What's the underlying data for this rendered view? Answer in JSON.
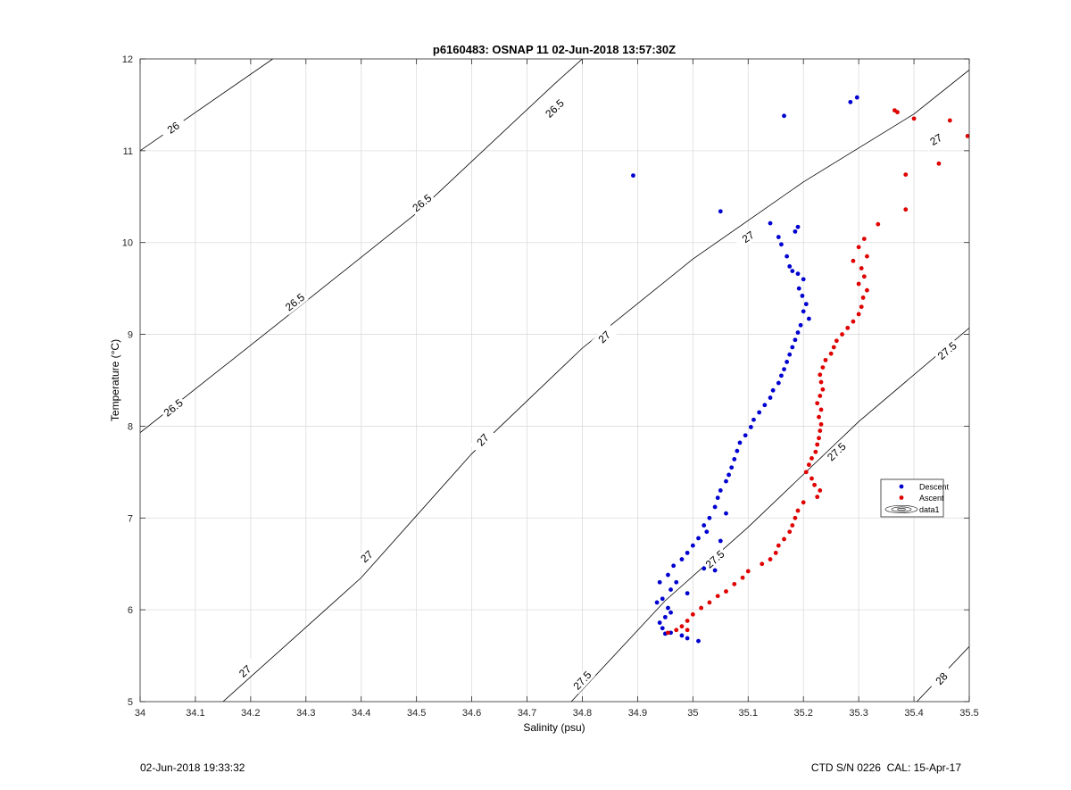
{
  "chart_data": {
    "type": "scatter",
    "title": "p6160483: OSNAP 11 02-Jun-2018 13:57:30Z",
    "xlabel": "Salinity (psu)",
    "ylabel": "Temperature (°C)",
    "xlim": [
      34,
      35.5
    ],
    "ylim": [
      5,
      12
    ],
    "xticks": [
      "34",
      "34.1",
      "34.2",
      "34.3",
      "34.4",
      "34.5",
      "34.6",
      "34.7",
      "34.8",
      "34.9",
      "35",
      "35.1",
      "35.2",
      "35.3",
      "35.4",
      "35.5"
    ],
    "yticks": [
      "5",
      "6",
      "7",
      "8",
      "9",
      "10",
      "11",
      "12"
    ],
    "grid": true,
    "legend_placement": "right",
    "legend": [
      "Descent",
      "Ascent",
      "data1"
    ],
    "series": [
      {
        "name": "Descent",
        "color": "#0000d0",
        "points": [
          [
            34.892,
            10.73
          ],
          [
            35.05,
            10.34
          ],
          [
            35.165,
            11.38
          ],
          [
            35.285,
            11.53
          ],
          [
            35.297,
            11.58
          ],
          [
            35.14,
            10.21
          ],
          [
            35.155,
            10.06
          ],
          [
            35.19,
            10.17
          ],
          [
            35.185,
            10.12
          ],
          [
            35.16,
            9.98
          ],
          [
            35.17,
            9.85
          ],
          [
            35.175,
            9.74
          ],
          [
            35.18,
            9.69
          ],
          [
            35.19,
            9.66
          ],
          [
            35.2,
            9.6
          ],
          [
            35.192,
            9.5
          ],
          [
            35.198,
            9.42
          ],
          [
            35.205,
            9.33
          ],
          [
            35.2,
            9.25
          ],
          [
            35.21,
            9.17
          ],
          [
            35.195,
            9.1
          ],
          [
            35.19,
            9.02
          ],
          [
            35.185,
            8.94
          ],
          [
            35.18,
            8.86
          ],
          [
            35.175,
            8.78
          ],
          [
            35.17,
            8.7
          ],
          [
            35.165,
            8.62
          ],
          [
            35.16,
            8.55
          ],
          [
            35.155,
            8.47
          ],
          [
            35.145,
            8.39
          ],
          [
            35.14,
            8.31
          ],
          [
            35.13,
            8.23
          ],
          [
            35.12,
            8.15
          ],
          [
            35.11,
            8.07
          ],
          [
            35.105,
            7.99
          ],
          [
            35.095,
            7.9
          ],
          [
            35.085,
            7.82
          ],
          [
            35.08,
            7.73
          ],
          [
            35.075,
            7.64
          ],
          [
            35.07,
            7.55
          ],
          [
            35.065,
            7.47
          ],
          [
            35.06,
            7.4
          ],
          [
            35.05,
            7.3
          ],
          [
            35.045,
            7.22
          ],
          [
            35.04,
            7.12
          ],
          [
            35.06,
            7.05
          ],
          [
            35.03,
            7.0
          ],
          [
            35.02,
            6.92
          ],
          [
            35.025,
            6.85
          ],
          [
            35.01,
            6.78
          ],
          [
            35.05,
            6.75
          ],
          [
            35.0,
            6.7
          ],
          [
            34.99,
            6.62
          ],
          [
            34.98,
            6.55
          ],
          [
            34.965,
            6.48
          ],
          [
            35.02,
            6.45
          ],
          [
            35.04,
            6.43
          ],
          [
            34.955,
            6.38
          ],
          [
            34.97,
            6.3
          ],
          [
            34.94,
            6.3
          ],
          [
            34.96,
            6.22
          ],
          [
            34.99,
            6.18
          ],
          [
            34.945,
            6.12
          ],
          [
            34.935,
            6.08
          ],
          [
            34.955,
            6.02
          ],
          [
            34.96,
            5.97
          ],
          [
            34.95,
            5.92
          ],
          [
            34.94,
            5.86
          ],
          [
            34.945,
            5.8
          ],
          [
            34.96,
            5.75
          ],
          [
            34.98,
            5.72
          ],
          [
            34.99,
            5.69
          ],
          [
            35.01,
            5.66
          ],
          [
            34.95,
            5.74
          ]
        ]
      },
      {
        "name": "Ascent",
        "color": "#e00000",
        "points": [
          [
            35.365,
            11.44
          ],
          [
            35.37,
            11.42
          ],
          [
            35.4,
            11.35
          ],
          [
            35.465,
            11.33
          ],
          [
            35.497,
            11.16
          ],
          [
            35.445,
            10.86
          ],
          [
            35.385,
            10.74
          ],
          [
            35.385,
            10.36
          ],
          [
            35.335,
            10.2
          ],
          [
            35.31,
            10.04
          ],
          [
            35.3,
            9.95
          ],
          [
            35.315,
            9.85
          ],
          [
            35.29,
            9.8
          ],
          [
            35.305,
            9.72
          ],
          [
            35.31,
            9.63
          ],
          [
            35.3,
            9.55
          ],
          [
            35.315,
            9.48
          ],
          [
            35.308,
            9.4
          ],
          [
            35.305,
            9.3
          ],
          [
            35.3,
            9.22
          ],
          [
            35.29,
            9.14
          ],
          [
            35.28,
            9.07
          ],
          [
            35.27,
            9.0
          ],
          [
            35.26,
            8.93
          ],
          [
            35.255,
            8.86
          ],
          [
            35.25,
            8.79
          ],
          [
            35.24,
            8.72
          ],
          [
            35.235,
            8.64
          ],
          [
            35.23,
            8.56
          ],
          [
            35.232,
            8.48
          ],
          [
            35.235,
            8.4
          ],
          [
            35.23,
            8.33
          ],
          [
            35.225,
            8.25
          ],
          [
            35.232,
            8.18
          ],
          [
            35.228,
            8.1
          ],
          [
            35.232,
            8.02
          ],
          [
            35.23,
            7.95
          ],
          [
            35.228,
            7.87
          ],
          [
            35.225,
            7.8
          ],
          [
            35.222,
            7.72
          ],
          [
            35.215,
            7.65
          ],
          [
            35.21,
            7.58
          ],
          [
            35.205,
            7.5
          ],
          [
            35.215,
            7.43
          ],
          [
            35.22,
            7.36
          ],
          [
            35.23,
            7.3
          ],
          [
            35.225,
            7.23
          ],
          [
            35.2,
            7.17
          ],
          [
            35.19,
            7.08
          ],
          [
            35.185,
            7.0
          ],
          [
            35.18,
            6.92
          ],
          [
            35.175,
            6.85
          ],
          [
            35.165,
            6.77
          ],
          [
            35.155,
            6.7
          ],
          [
            35.15,
            6.62
          ],
          [
            35.14,
            6.55
          ],
          [
            35.125,
            6.5
          ],
          [
            35.1,
            6.42
          ],
          [
            35.09,
            6.35
          ],
          [
            35.075,
            6.28
          ],
          [
            35.06,
            6.2
          ],
          [
            35.045,
            6.15
          ],
          [
            35.03,
            6.08
          ],
          [
            35.015,
            6.02
          ],
          [
            35.0,
            5.95
          ],
          [
            34.99,
            5.88
          ],
          [
            34.98,
            5.82
          ],
          [
            34.97,
            5.78
          ],
          [
            34.955,
            5.75
          ],
          [
            34.99,
            5.78
          ]
        ]
      }
    ],
    "contours": [
      {
        "label": "26",
        "points": [
          [
            34.0,
            11.0
          ],
          [
            34.24,
            12.0
          ]
        ],
        "label_positions": [
          [
            34.06,
            11.25
          ]
        ]
      },
      {
        "label": "26.5",
        "points": [
          [
            34.0,
            7.93
          ],
          [
            34.25,
            9.12
          ],
          [
            34.5,
            10.32
          ],
          [
            34.75,
            11.73
          ],
          [
            34.8,
            12.0
          ]
        ],
        "label_positions": [
          [
            34.06,
            8.2
          ],
          [
            34.28,
            9.35
          ],
          [
            34.51,
            10.43
          ],
          [
            34.75,
            11.46
          ]
        ]
      },
      {
        "label": "27",
        "points": [
          [
            34.15,
            5.0
          ],
          [
            34.4,
            6.35
          ],
          [
            34.6,
            7.7
          ],
          [
            34.8,
            8.85
          ],
          [
            35.0,
            9.82
          ],
          [
            35.2,
            10.66
          ],
          [
            35.4,
            11.4
          ],
          [
            35.5,
            11.88
          ]
        ],
        "label_positions": [
          [
            34.19,
            5.33
          ],
          [
            34.41,
            6.58
          ],
          [
            34.62,
            7.85
          ],
          [
            34.84,
            8.97
          ],
          [
            35.1,
            10.06
          ],
          [
            35.44,
            11.12
          ]
        ]
      },
      {
        "label": "27.5",
        "points": [
          [
            34.78,
            5.0
          ],
          [
            34.95,
            6.1
          ],
          [
            35.1,
            6.9
          ],
          [
            35.3,
            8.05
          ],
          [
            35.5,
            9.07
          ]
        ],
        "label_positions": [
          [
            34.8,
            5.23
          ],
          [
            35.04,
            6.55
          ],
          [
            35.26,
            7.72
          ],
          [
            35.46,
            8.82
          ]
        ]
      },
      {
        "label": "28",
        "points": [
          [
            35.35,
            4.65
          ],
          [
            35.5,
            5.6
          ]
        ],
        "label_positions": [
          [
            35.45,
            5.25
          ]
        ]
      }
    ],
    "footer_left": "02-Jun-2018 19:33:32",
    "footer_right": "CTD S/N 0226  CAL: 15-Apr-17"
  }
}
